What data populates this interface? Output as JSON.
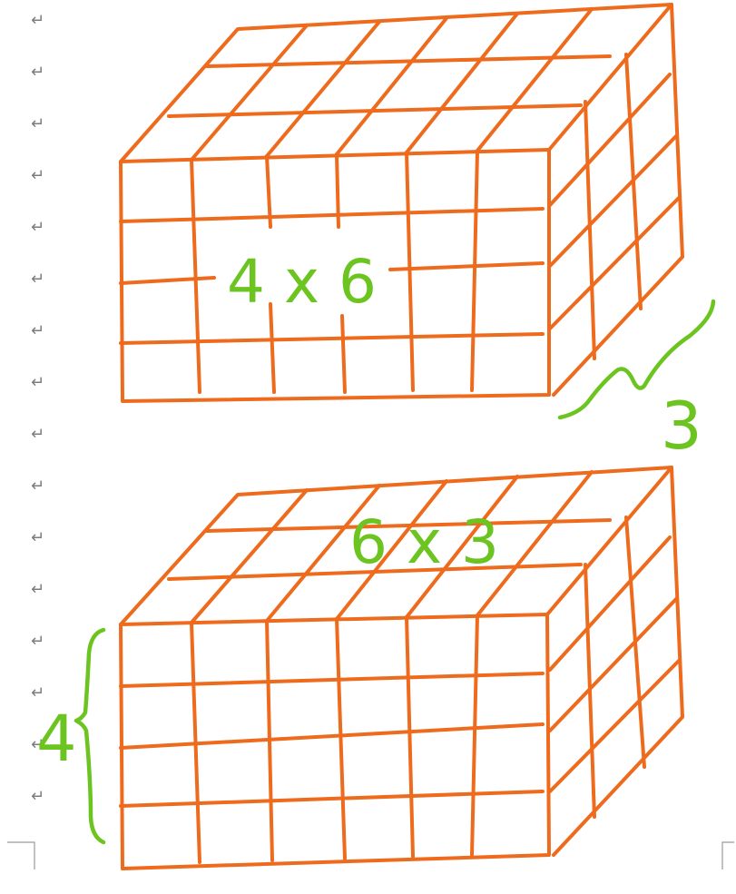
{
  "paragraph_mark": "↵",
  "paragraph_marks_count": 16,
  "colors": {
    "grid": "#ee6a1c",
    "annotation": "#6cc420",
    "mark": "#7d7d7d"
  },
  "prism_top": {
    "front_label": "4 x 6",
    "depth_label": "3"
  },
  "prism_bottom": {
    "top_label": "6 x 3",
    "height_label": "4"
  }
}
